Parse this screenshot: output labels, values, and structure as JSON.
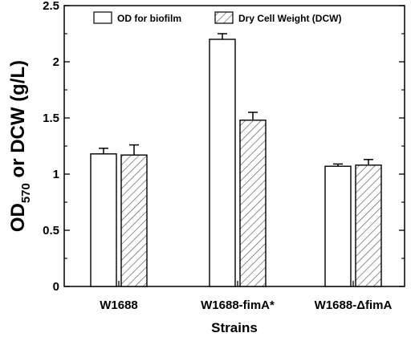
{
  "chart_data": {
    "type": "bar",
    "categories": [
      "W1688",
      "W1688-fimA*",
      "W1688-ΔfimA"
    ],
    "series": [
      {
        "name": "OD for biofilm",
        "values": [
          1.18,
          2.2,
          1.07
        ],
        "errors": [
          0.05,
          0.05,
          0.02
        ],
        "fill": "white"
      },
      {
        "name": "Dry Cell Weight (DCW)",
        "values": [
          1.17,
          1.48,
          1.08
        ],
        "errors": [
          0.09,
          0.07,
          0.05
        ],
        "fill": "hatched"
      }
    ],
    "ylim": [
      0,
      2.5
    ],
    "yticks": [
      "0",
      "0.5",
      "1",
      "1.5",
      "2",
      "2.5"
    ],
    "xlabel": "Strains",
    "ylabel_main": "OD",
    "ylabel_sub": "570",
    "ylabel_rest": " or DCW (g/L)",
    "legend_position": "top",
    "grid": false
  }
}
